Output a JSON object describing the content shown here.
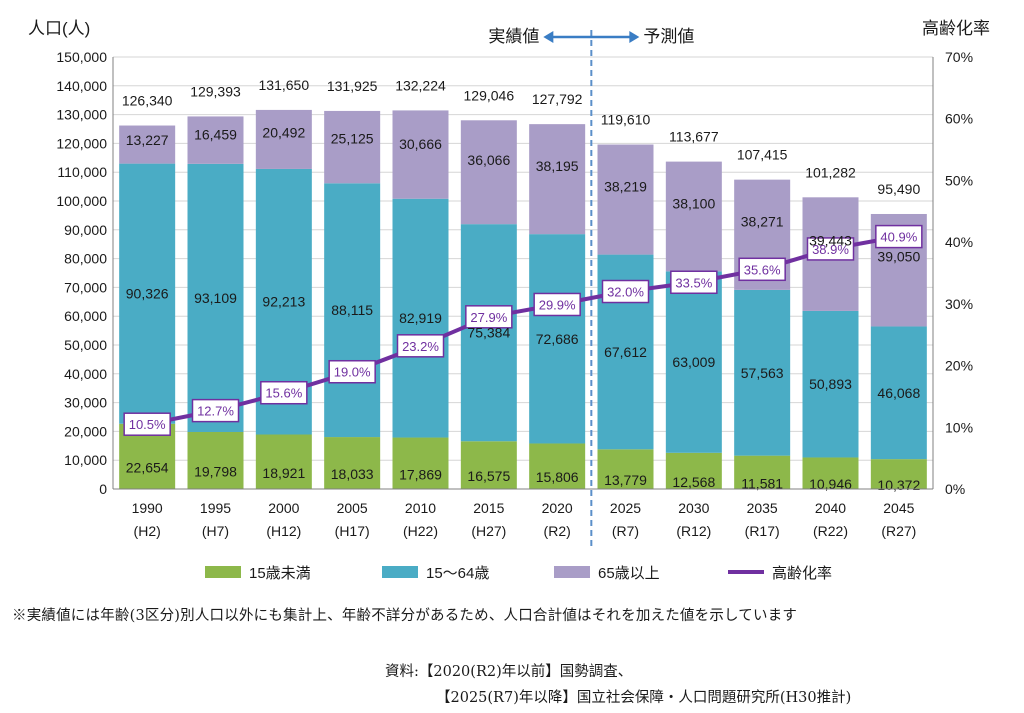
{
  "chart_data": {
    "type": "bar",
    "stacked": true,
    "left_axis_title": "人口(人)",
    "right_axis_title": "高齢化率",
    "actual_label": "実績値",
    "forecast_label": "予測値",
    "ylim": [
      0,
      150000
    ],
    "y_ticks": [
      "0",
      "10,000",
      "20,000",
      "30,000",
      "40,000",
      "50,000",
      "60,000",
      "70,000",
      "80,000",
      "90,000",
      "100,000",
      "110,000",
      "120,000",
      "130,000",
      "140,000",
      "150,000"
    ],
    "y2lim": [
      0,
      70
    ],
    "y2_ticks": [
      "0%",
      "10%",
      "20%",
      "30%",
      "40%",
      "50%",
      "60%",
      "70%"
    ],
    "categories": [
      "1990",
      "1995",
      "2000",
      "2005",
      "2010",
      "2015",
      "2020",
      "2025",
      "2030",
      "2035",
      "2040",
      "2045"
    ],
    "category_sublabels": [
      "(H2)",
      "(H7)",
      "(H12)",
      "(H17)",
      "(H22)",
      "(H27)",
      "(R2)",
      "(R7)",
      "(R12)",
      "(R17)",
      "(R22)",
      "(R27)"
    ],
    "totals": [
      "126,340",
      "129,393",
      "131,650",
      "131,925",
      "132,224",
      "129,046",
      "127,792",
      "119,610",
      "113,677",
      "107,415",
      "101,282",
      "95,490"
    ],
    "series": [
      {
        "name": "15歳未満",
        "color": "#8db84a",
        "values": [
          22654,
          19798,
          18921,
          18033,
          17869,
          16575,
          15806,
          13779,
          12568,
          11581,
          10946,
          10372
        ],
        "labels": [
          "22,654",
          "19,798",
          "18,921",
          "18,033",
          "17,869",
          "16,575",
          "15,806",
          "13,779",
          "12,568",
          "11,581",
          "10,946",
          "10,372"
        ]
      },
      {
        "name": "15〜64歳",
        "color": "#4aacc5",
        "values": [
          90326,
          93109,
          92213,
          88115,
          82919,
          75384,
          72686,
          67612,
          63009,
          57563,
          50893,
          46068
        ],
        "labels": [
          "90,326",
          "93,109",
          "92,213",
          "88,115",
          "82,919",
          "75,384",
          "72,686",
          "67,612",
          "63,009",
          "57,563",
          "50,893",
          "46,068"
        ]
      },
      {
        "name": "65歳以上",
        "color": "#a99dc7",
        "values": [
          13227,
          16459,
          20492,
          25125,
          30666,
          36066,
          38195,
          38219,
          38100,
          38271,
          39443,
          39050
        ],
        "labels": [
          "13,227",
          "16,459",
          "20,492",
          "25,125",
          "30,666",
          "36,066",
          "38,195",
          "38,219",
          "38,100",
          "38,271",
          "39,443",
          "39,050"
        ]
      },
      {
        "name": "高齢化率",
        "color": "#7030a0",
        "type": "line",
        "axis": "right",
        "values": [
          10.5,
          12.7,
          15.6,
          19.0,
          23.2,
          27.9,
          29.9,
          32.0,
          33.5,
          35.6,
          38.9,
          40.9
        ],
        "labels": [
          "10.5%",
          "12.7%",
          "15.6%",
          "19.0%",
          "23.2%",
          "27.9%",
          "29.9%",
          "32.0%",
          "33.5%",
          "35.6%",
          "38.9%",
          "40.9%"
        ]
      }
    ]
  },
  "footnote": "※実績値には年齢(3区分)別人口以外にも集計上、年齢不詳分があるため、人口合計値はそれを加えた値を示しています",
  "source_line1": "資料:【2020(R2)年以前】国勢調査、",
  "source_line2": "【2025(R7)年以降】国立社会保障・人口問題研究所(H30推計)"
}
